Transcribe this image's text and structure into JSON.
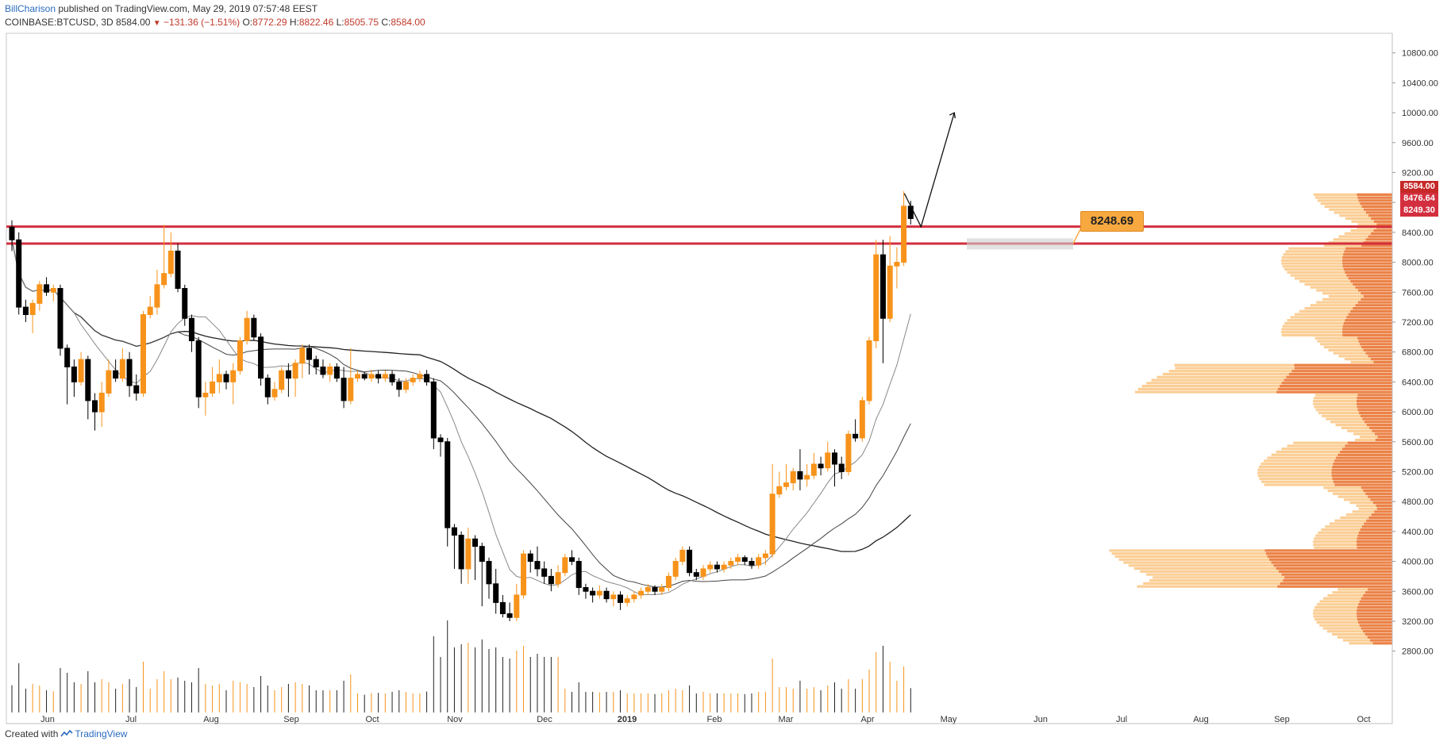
{
  "header": {
    "author": "BillCharison",
    "published": "published on TradingView.com, May 29, 2019 07:57:48 EEST",
    "symbol": "COINBASE:BTCUSD, 3D",
    "last": "8584.00",
    "change": "−131.36 (−1.51%)",
    "o_label": "O:",
    "o": "8772.29",
    "h_label": "H:",
    "h": "8822.46",
    "l_label": "L:",
    "l": "8505.75",
    "c_label": "C:",
    "c": "8584.00"
  },
  "footer": {
    "created": "Created with",
    "brand": "TradingView"
  },
  "annotation": {
    "label": "8248.69"
  },
  "price_tags": [
    {
      "value": "8584.00",
      "color": "#c62828"
    },
    {
      "value": "8476.64",
      "color": "#d32f3f"
    },
    {
      "value": "8249.30",
      "color": "#d32f3f"
    }
  ],
  "colors": {
    "up": "#f7931a",
    "down": "#000000",
    "resistance": "#d32f3f",
    "volume_profile_light": "#fbc98a",
    "volume_profile_dark": "#e8743b",
    "moving_average": "#222222"
  },
  "chart_data": {
    "type": "candlestick",
    "symbol": "COINBASE:BTCUSD",
    "timeframe": "3D",
    "ylim": [
      2600,
      10900
    ],
    "y_ticks": [
      "2800.00",
      "3200.00",
      "3600.00",
      "4000.00",
      "4400.00",
      "4800.00",
      "5200.00",
      "5600.00",
      "6000.00",
      "6400.00",
      "6800.00",
      "7200.00",
      "7600.00",
      "8000.00",
      "8400.00",
      "8800.00",
      "9200.00",
      "9600.00",
      "10000.00",
      "10400.00",
      "10800.00"
    ],
    "x_ticks": [
      "Jun",
      "Jul",
      "Aug",
      "Sep",
      "Oct",
      "Nov",
      "Dec",
      "2019",
      "Feb",
      "Mar",
      "Apr",
      "May",
      "Jun",
      "Jul",
      "Aug",
      "Sep",
      "Oct"
    ],
    "horizontal_levels": [
      8476.64,
      8249.3
    ],
    "arrow_target": 10000,
    "candles": [
      {
        "o": 8470,
        "c": 8300,
        "h": 8560,
        "l": 8150
      },
      {
        "o": 8300,
        "c": 7400,
        "h": 8400,
        "l": 7300
      },
      {
        "o": 7400,
        "c": 7300,
        "h": 7500,
        "l": 7200
      },
      {
        "o": 7300,
        "c": 7450,
        "h": 7500,
        "l": 7050
      },
      {
        "o": 7450,
        "c": 7700,
        "h": 7750,
        "l": 7350
      },
      {
        "o": 7700,
        "c": 7600,
        "h": 7800,
        "l": 7550
      },
      {
        "o": 7600,
        "c": 7650,
        "h": 7700,
        "l": 7480
      },
      {
        "o": 7650,
        "c": 6850,
        "h": 7700,
        "l": 6750
      },
      {
        "o": 6850,
        "c": 6600,
        "h": 6900,
        "l": 6100
      },
      {
        "o": 6600,
        "c": 6400,
        "h": 6700,
        "l": 6200
      },
      {
        "o": 6400,
        "c": 6700,
        "h": 6800,
        "l": 6350
      },
      {
        "o": 6700,
        "c": 6150,
        "h": 6750,
        "l": 5900
      },
      {
        "o": 6150,
        "c": 6000,
        "h": 6250,
        "l": 5750
      },
      {
        "o": 6000,
        "c": 6250,
        "h": 6400,
        "l": 5800
      },
      {
        "o": 6250,
        "c": 6550,
        "h": 6700,
        "l": 6200
      },
      {
        "o": 6550,
        "c": 6450,
        "h": 6700,
        "l": 6400
      },
      {
        "o": 6450,
        "c": 6700,
        "h": 6850,
        "l": 6400
      },
      {
        "o": 6700,
        "c": 6350,
        "h": 6800,
        "l": 6200
      },
      {
        "o": 6350,
        "c": 6250,
        "h": 6500,
        "l": 6150
      },
      {
        "o": 6250,
        "c": 7300,
        "h": 7350,
        "l": 6200
      },
      {
        "o": 7300,
        "c": 7400,
        "h": 7550,
        "l": 7250
      },
      {
        "o": 7400,
        "c": 7700,
        "h": 7900,
        "l": 7300
      },
      {
        "o": 7700,
        "c": 7850,
        "h": 8500,
        "l": 7650
      },
      {
        "o": 7850,
        "c": 8150,
        "h": 8400,
        "l": 7800
      },
      {
        "o": 8150,
        "c": 7650,
        "h": 8250,
        "l": 7600
      },
      {
        "o": 7650,
        "c": 7250,
        "h": 7700,
        "l": 7150
      },
      {
        "o": 7250,
        "c": 6950,
        "h": 7300,
        "l": 6800
      },
      {
        "o": 6950,
        "c": 6200,
        "h": 7000,
        "l": 6050
      },
      {
        "o": 6200,
        "c": 6250,
        "h": 6400,
        "l": 5950
      },
      {
        "o": 6250,
        "c": 6400,
        "h": 6600,
        "l": 6200
      },
      {
        "o": 6400,
        "c": 6500,
        "h": 6700,
        "l": 6250
      },
      {
        "o": 6500,
        "c": 6400,
        "h": 6550,
        "l": 6300
      },
      {
        "o": 6400,
        "c": 6550,
        "h": 6650,
        "l": 6100
      },
      {
        "o": 6550,
        "c": 6950,
        "h": 7000,
        "l": 6500
      },
      {
        "o": 6950,
        "c": 7250,
        "h": 7350,
        "l": 6900
      },
      {
        "o": 7250,
        "c": 7000,
        "h": 7300,
        "l": 6950
      },
      {
        "o": 7000,
        "c": 6450,
        "h": 7050,
        "l": 6350
      },
      {
        "o": 6450,
        "c": 6200,
        "h": 6500,
        "l": 6100
      },
      {
        "o": 6200,
        "c": 6300,
        "h": 6400,
        "l": 6150
      },
      {
        "o": 6300,
        "c": 6550,
        "h": 6600,
        "l": 6250
      },
      {
        "o": 6550,
        "c": 6450,
        "h": 6650,
        "l": 6200
      },
      {
        "o": 6450,
        "c": 6650,
        "h": 6700,
        "l": 6200
      },
      {
        "o": 6650,
        "c": 6850,
        "h": 6900,
        "l": 6450
      },
      {
        "o": 6850,
        "c": 6700,
        "h": 6900,
        "l": 6500
      },
      {
        "o": 6700,
        "c": 6600,
        "h": 6750,
        "l": 6500
      },
      {
        "o": 6600,
        "c": 6500,
        "h": 6700,
        "l": 6450
      },
      {
        "o": 6500,
        "c": 6600,
        "h": 6650,
        "l": 6400
      },
      {
        "o": 6600,
        "c": 6450,
        "h": 6650,
        "l": 6400
      },
      {
        "o": 6450,
        "c": 6150,
        "h": 6600,
        "l": 6050
      },
      {
        "o": 6150,
        "c": 6450,
        "h": 6850,
        "l": 6100
      },
      {
        "o": 6450,
        "c": 6500,
        "h": 6550,
        "l": 6400
      },
      {
        "o": 6500,
        "c": 6450,
        "h": 6530,
        "l": 6420
      },
      {
        "o": 6450,
        "c": 6500,
        "h": 6560,
        "l": 6400
      },
      {
        "o": 6500,
        "c": 6450,
        "h": 6550,
        "l": 6380
      },
      {
        "o": 6450,
        "c": 6500,
        "h": 6550,
        "l": 6400
      },
      {
        "o": 6500,
        "c": 6400,
        "h": 6550,
        "l": 6350
      },
      {
        "o": 6400,
        "c": 6300,
        "h": 6450,
        "l": 6200
      },
      {
        "o": 6300,
        "c": 6400,
        "h": 6450,
        "l": 6250
      },
      {
        "o": 6400,
        "c": 6450,
        "h": 6500,
        "l": 6350
      },
      {
        "o": 6450,
        "c": 6500,
        "h": 6550,
        "l": 6400
      },
      {
        "o": 6500,
        "c": 6400,
        "h": 6560,
        "l": 6350
      },
      {
        "o": 6400,
        "c": 5650,
        "h": 6450,
        "l": 5500
      },
      {
        "o": 5650,
        "c": 5600,
        "h": 5700,
        "l": 5400
      },
      {
        "o": 5600,
        "c": 4450,
        "h": 5650,
        "l": 4200
      },
      {
        "o": 4450,
        "c": 4350,
        "h": 4500,
        "l": 3900
      },
      {
        "o": 4350,
        "c": 3900,
        "h": 4400,
        "l": 3700
      },
      {
        "o": 3900,
        "c": 4300,
        "h": 4450,
        "l": 3700
      },
      {
        "o": 4300,
        "c": 4200,
        "h": 4350,
        "l": 3750
      },
      {
        "o": 4200,
        "c": 4000,
        "h": 4250,
        "l": 3400
      },
      {
        "o": 4000,
        "c": 3700,
        "h": 4050,
        "l": 3500
      },
      {
        "o": 3700,
        "c": 3450,
        "h": 3900,
        "l": 3300
      },
      {
        "o": 3450,
        "c": 3300,
        "h": 3550,
        "l": 3250
      },
      {
        "o": 3300,
        "c": 3250,
        "h": 3450,
        "l": 3200
      },
      {
        "o": 3250,
        "c": 3550,
        "h": 3700,
        "l": 3200
      },
      {
        "o": 3550,
        "c": 4100,
        "h": 4150,
        "l": 3500
      },
      {
        "o": 4100,
        "c": 4000,
        "h": 4150,
        "l": 3850
      },
      {
        "o": 4000,
        "c": 3900,
        "h": 4200,
        "l": 3800
      },
      {
        "o": 3900,
        "c": 3800,
        "h": 4000,
        "l": 3700
      },
      {
        "o": 3800,
        "c": 3700,
        "h": 3900,
        "l": 3600
      },
      {
        "o": 3700,
        "c": 3850,
        "h": 3950,
        "l": 3650
      },
      {
        "o": 3850,
        "c": 4050,
        "h": 4100,
        "l": 3800
      },
      {
        "o": 4050,
        "c": 4000,
        "h": 4150,
        "l": 3950
      },
      {
        "o": 4000,
        "c": 3650,
        "h": 4050,
        "l": 3550
      },
      {
        "o": 3650,
        "c": 3600,
        "h": 3700,
        "l": 3500
      },
      {
        "o": 3600,
        "c": 3550,
        "h": 3650,
        "l": 3450
      },
      {
        "o": 3550,
        "c": 3600,
        "h": 3680,
        "l": 3500
      },
      {
        "o": 3600,
        "c": 3500,
        "h": 3650,
        "l": 3450
      },
      {
        "o": 3500,
        "c": 3550,
        "h": 3600,
        "l": 3400
      },
      {
        "o": 3550,
        "c": 3450,
        "h": 3600,
        "l": 3350
      },
      {
        "o": 3450,
        "c": 3500,
        "h": 3550,
        "l": 3400
      },
      {
        "o": 3500,
        "c": 3550,
        "h": 3600,
        "l": 3450
      },
      {
        "o": 3550,
        "c": 3600,
        "h": 3650,
        "l": 3500
      },
      {
        "o": 3600,
        "c": 3650,
        "h": 3700,
        "l": 3550
      },
      {
        "o": 3650,
        "c": 3600,
        "h": 3680,
        "l": 3550
      },
      {
        "o": 3600,
        "c": 3650,
        "h": 3700,
        "l": 3550
      },
      {
        "o": 3650,
        "c": 3800,
        "h": 3850,
        "l": 3600
      },
      {
        "o": 3800,
        "c": 4000,
        "h": 4050,
        "l": 3750
      },
      {
        "o": 4000,
        "c": 4150,
        "h": 4200,
        "l": 3950
      },
      {
        "o": 4150,
        "c": 3850,
        "h": 4200,
        "l": 3800
      },
      {
        "o": 3850,
        "c": 3800,
        "h": 3900,
        "l": 3750
      },
      {
        "o": 3800,
        "c": 3900,
        "h": 3950,
        "l": 3750
      },
      {
        "o": 3900,
        "c": 3950,
        "h": 4000,
        "l": 3850
      },
      {
        "o": 3950,
        "c": 3900,
        "h": 4000,
        "l": 3850
      },
      {
        "o": 3900,
        "c": 3950,
        "h": 4000,
        "l": 3850
      },
      {
        "o": 3950,
        "c": 4000,
        "h": 4050,
        "l": 3900
      },
      {
        "o": 4000,
        "c": 4050,
        "h": 4100,
        "l": 3950
      },
      {
        "o": 4050,
        "c": 4000,
        "h": 4080,
        "l": 3950
      },
      {
        "o": 4000,
        "c": 3950,
        "h": 4050,
        "l": 3900
      },
      {
        "o": 3950,
        "c": 4050,
        "h": 4100,
        "l": 3900
      },
      {
        "o": 4050,
        "c": 4100,
        "h": 4150,
        "l": 3950
      },
      {
        "o": 4100,
        "c": 4900,
        "h": 5300,
        "l": 4050
      },
      {
        "o": 4900,
        "c": 5000,
        "h": 5200,
        "l": 4850
      },
      {
        "o": 5000,
        "c": 5050,
        "h": 5300,
        "l": 4950
      },
      {
        "o": 5050,
        "c": 5200,
        "h": 5250,
        "l": 4950
      },
      {
        "o": 5200,
        "c": 5100,
        "h": 5500,
        "l": 4950
      },
      {
        "o": 5100,
        "c": 5150,
        "h": 5300,
        "l": 5000
      },
      {
        "o": 5150,
        "c": 5300,
        "h": 5450,
        "l": 5100
      },
      {
        "o": 5300,
        "c": 5250,
        "h": 5400,
        "l": 5150
      },
      {
        "o": 5250,
        "c": 5450,
        "h": 5600,
        "l": 5200
      },
      {
        "o": 5450,
        "c": 5300,
        "h": 5500,
        "l": 5000
      },
      {
        "o": 5300,
        "c": 5200,
        "h": 5400,
        "l": 5100
      },
      {
        "o": 5200,
        "c": 5700,
        "h": 5750,
        "l": 5150
      },
      {
        "o": 5700,
        "c": 5650,
        "h": 5900,
        "l": 5600
      },
      {
        "o": 5650,
        "c": 6150,
        "h": 6200,
        "l": 5600
      },
      {
        "o": 6150,
        "c": 6950,
        "h": 7000,
        "l": 6100
      },
      {
        "o": 6950,
        "c": 8100,
        "h": 8300,
        "l": 6850
      },
      {
        "o": 8100,
        "c": 7250,
        "h": 8300,
        "l": 6650
      },
      {
        "o": 7250,
        "c": 7950,
        "h": 8350,
        "l": 7200
      },
      {
        "o": 7950,
        "c": 8000,
        "h": 8200,
        "l": 7650
      },
      {
        "o": 8000,
        "c": 8750,
        "h": 8950,
        "l": 7950
      },
      {
        "o": 8750,
        "c": 8584,
        "h": 8822,
        "l": 8505
      }
    ],
    "moving_average_series": [
      "long",
      "mid",
      "short"
    ]
  }
}
